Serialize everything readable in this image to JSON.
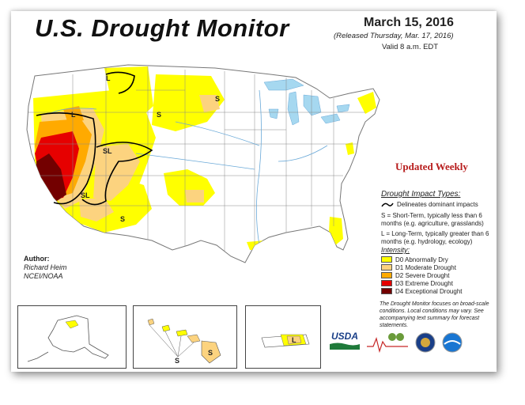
{
  "header": {
    "title": "U.S. Drought Monitor",
    "date": "March 15, 2016",
    "released": "(Released Thursday, Mar. 17, 2016)",
    "valid": "Valid 8 a.m. EDT"
  },
  "updated_label": "Updated Weekly",
  "impact": {
    "title": "Drought Impact Types:",
    "line_label": "Delineates dominant impacts",
    "short_term": "S = Short-Term, typically less than 6 months (e.g. agriculture, grasslands)",
    "long_term": "L = Long-Term, typically greater than 6 months (e.g. hydrology, ecology)"
  },
  "intensity": {
    "title": "Intensity:",
    "levels": [
      {
        "label": "D0 Abnormally Dry",
        "color": "#ffff00"
      },
      {
        "label": "D1 Moderate Drought",
        "color": "#fcd37f"
      },
      {
        "label": "D2 Severe Drought",
        "color": "#ffaa00"
      },
      {
        "label": "D3 Extreme Drought",
        "color": "#e60000"
      },
      {
        "label": "D4 Exceptional Drought",
        "color": "#730000"
      }
    ]
  },
  "footnote": "The Drought Monitor focuses on broad-scale conditions. Local conditions may vary. See accompanying text summary for forecast statements.",
  "author": {
    "heading": "Author:",
    "name": "Richard Heim",
    "org": "NCEI/NOAA"
  },
  "map_labels": {
    "L": "L",
    "S": "S",
    "SL": "SL"
  },
  "logos": {
    "usda": "USDA"
  },
  "colors": {
    "water": "#a6d8f0",
    "border": "#888888",
    "river": "#6aa9d8"
  }
}
